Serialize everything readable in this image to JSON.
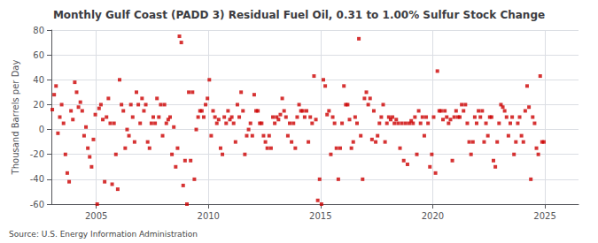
{
  "chart_data": {
    "type": "scatter",
    "title": "Monthly Gulf Coast (PADD 3) Residual Fuel Oil, 0.31 to 1.00% Sulfur Stock Change",
    "ylabel": "Thousand Barrels per Day",
    "annotations": [
      "Source: U.S. Energy Information Administration"
    ],
    "color": "#cc0000",
    "marker": "square",
    "grid": true,
    "xlim": [
      2003.0,
      2026.5
    ],
    "xticks": [
      2005,
      2010,
      2015,
      2020,
      2025
    ],
    "ylim": [
      -60,
      80
    ],
    "yticks": [
      -60,
      -40,
      -20,
      0,
      20,
      40,
      60,
      80
    ],
    "x": [
      2003.042,
      2003.125,
      2003.208,
      2003.292,
      2003.375,
      2003.458,
      2003.542,
      2003.625,
      2003.708,
      2003.792,
      2003.875,
      2003.958,
      2004.042,
      2004.125,
      2004.208,
      2004.292,
      2004.375,
      2004.458,
      2004.542,
      2004.625,
      2004.708,
      2004.792,
      2004.875,
      2004.958,
      2005.042,
      2005.125,
      2005.208,
      2005.292,
      2005.375,
      2005.458,
      2005.542,
      2005.625,
      2005.708,
      2005.792,
      2005.875,
      2005.958,
      2006.042,
      2006.125,
      2006.208,
      2006.292,
      2006.375,
      2006.458,
      2006.542,
      2006.625,
      2006.708,
      2006.792,
      2006.875,
      2006.958,
      2007.042,
      2007.125,
      2007.208,
      2007.292,
      2007.375,
      2007.458,
      2007.542,
      2007.625,
      2007.708,
      2007.792,
      2007.875,
      2007.958,
      2008.042,
      2008.125,
      2008.208,
      2008.292,
      2008.375,
      2008.458,
      2008.542,
      2008.625,
      2008.708,
      2008.792,
      2008.875,
      2008.958,
      2009.042,
      2009.125,
      2009.208,
      2009.292,
      2009.375,
      2009.458,
      2009.542,
      2009.625,
      2009.708,
      2009.792,
      2009.875,
      2009.958,
      2010.042,
      2010.125,
      2010.208,
      2010.292,
      2010.375,
      2010.458,
      2010.542,
      2010.625,
      2010.708,
      2010.792,
      2010.875,
      2010.958,
      2011.042,
      2011.125,
      2011.208,
      2011.292,
      2011.375,
      2011.458,
      2011.542,
      2011.625,
      2011.708,
      2011.792,
      2011.875,
      2011.958,
      2012.042,
      2012.125,
      2012.208,
      2012.292,
      2012.375,
      2012.458,
      2012.542,
      2012.625,
      2012.708,
      2012.792,
      2012.875,
      2012.958,
      2013.042,
      2013.125,
      2013.208,
      2013.292,
      2013.375,
      2013.458,
      2013.542,
      2013.625,
      2013.708,
      2013.792,
      2013.875,
      2013.958,
      2014.042,
      2014.125,
      2014.208,
      2014.292,
      2014.375,
      2014.458,
      2014.542,
      2014.625,
      2014.708,
      2014.792,
      2014.875,
      2014.958,
      2015.042,
      2015.125,
      2015.208,
      2015.292,
      2015.375,
      2015.458,
      2015.542,
      2015.625,
      2015.708,
      2015.792,
      2015.875,
      2015.958,
      2016.042,
      2016.125,
      2016.208,
      2016.292,
      2016.375,
      2016.458,
      2016.542,
      2016.625,
      2016.708,
      2016.792,
      2016.875,
      2016.958,
      2017.042,
      2017.125,
      2017.208,
      2017.292,
      2017.375,
      2017.458,
      2017.542,
      2017.625,
      2017.708,
      2017.792,
      2017.875,
      2017.958,
      2018.042,
      2018.125,
      2018.208,
      2018.292,
      2018.375,
      2018.458,
      2018.542,
      2018.625,
      2018.708,
      2018.792,
      2018.875,
      2018.958,
      2019.042,
      2019.125,
      2019.208,
      2019.292,
      2019.375,
      2019.458,
      2019.542,
      2019.625,
      2019.708,
      2019.792,
      2019.875,
      2019.958,
      2020.042,
      2020.125,
      2020.208,
      2020.292,
      2020.375,
      2020.458,
      2020.542,
      2020.625,
      2020.708,
      2020.792,
      2020.875,
      2020.958,
      2021.042,
      2021.125,
      2021.208,
      2021.292,
      2021.375,
      2021.458,
      2021.542,
      2021.625,
      2021.708,
      2021.792,
      2021.875,
      2021.958,
      2022.042,
      2022.125,
      2022.208,
      2022.292,
      2022.375,
      2022.458,
      2022.542,
      2022.625,
      2022.708,
      2022.792,
      2022.875,
      2022.958,
      2023.042,
      2023.125,
      2023.208,
      2023.292,
      2023.375,
      2023.458,
      2023.542,
      2023.625,
      2023.708,
      2023.792,
      2023.875,
      2023.958,
      2024.042,
      2024.125,
      2024.208,
      2024.292,
      2024.375,
      2024.458,
      2024.542,
      2024.625,
      2024.708,
      2024.792,
      2024.875,
      2024.958
    ],
    "values": [
      16,
      28,
      35,
      -3,
      10,
      20,
      5,
      -20,
      -35,
      -42,
      15,
      8,
      38,
      30,
      18,
      22,
      15,
      -5,
      2,
      -15,
      -22,
      -30,
      -8,
      12,
      -60,
      17,
      20,
      8,
      -42,
      10,
      25,
      5,
      -44,
      5,
      -20,
      -48,
      40,
      20,
      15,
      -15,
      0,
      -5,
      20,
      10,
      -10,
      30,
      20,
      5,
      25,
      15,
      20,
      -10,
      -15,
      5,
      10,
      5,
      25,
      10,
      20,
      -5,
      20,
      5,
      8,
      10,
      -20,
      2,
      -30,
      -15,
      75,
      70,
      -45,
      -25,
      -60,
      30,
      -25,
      30,
      -40,
      0,
      10,
      15,
      15,
      10,
      20,
      25,
      40,
      -5,
      15,
      10,
      5,
      8,
      -15,
      -20,
      10,
      5,
      15,
      8,
      10,
      5,
      -10,
      20,
      10,
      30,
      15,
      -20,
      -5,
      0,
      5,
      -5,
      28,
      15,
      15,
      5,
      5,
      -5,
      -10,
      -15,
      -5,
      -15,
      10,
      5,
      10,
      8,
      12,
      25,
      15,
      10,
      -5,
      5,
      -10,
      5,
      -15,
      10,
      20,
      15,
      15,
      10,
      15,
      -10,
      10,
      5,
      43,
      8,
      -57,
      -40,
      -60,
      40,
      35,
      12,
      15,
      -20,
      10,
      5,
      -15,
      -40,
      -15,
      5,
      35,
      20,
      20,
      8,
      -15,
      -10,
      10,
      5,
      73,
      -5,
      -40,
      25,
      30,
      20,
      25,
      -8,
      15,
      -10,
      -5,
      5,
      10,
      20,
      -10,
      5,
      10,
      8,
      10,
      5,
      8,
      5,
      -15,
      5,
      -25,
      5,
      -28,
      5,
      7,
      5,
      10,
      -20,
      15,
      5,
      10,
      -5,
      10,
      5,
      -30,
      -20,
      10,
      -35,
      47,
      15,
      15,
      8,
      15,
      10,
      5,
      8,
      -25,
      10,
      15,
      10,
      10,
      20,
      15,
      20,
      5,
      -10,
      -20,
      -10,
      10,
      5,
      15,
      10,
      15,
      -10,
      5,
      -5,
      10,
      10,
      -25,
      -30,
      -10,
      5,
      20,
      18,
      15,
      10,
      -5,
      5,
      10,
      -20,
      -10,
      5,
      10,
      -5,
      -10,
      15,
      35,
      18,
      -40,
      10,
      5,
      -15,
      -20,
      43,
      -10,
      -10
    ]
  }
}
